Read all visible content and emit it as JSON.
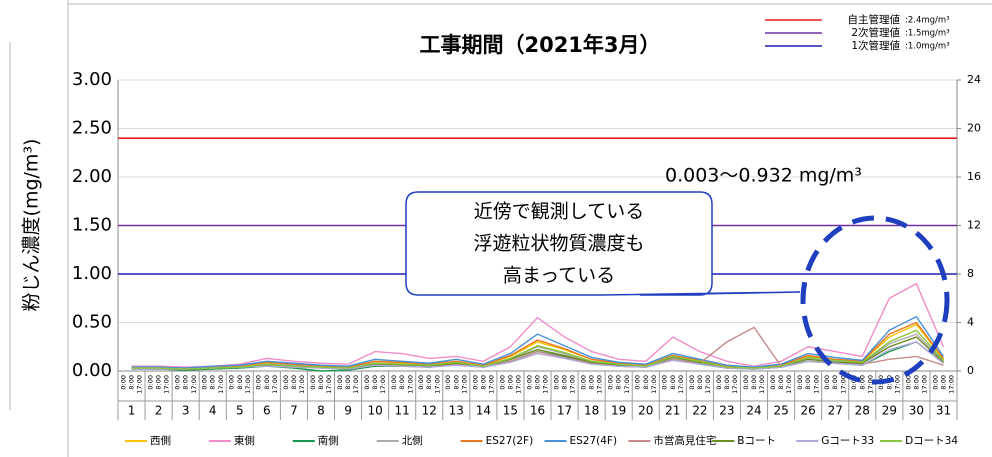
{
  "chart_data": {
    "type": "line",
    "title": "工事期間（2021年3月）",
    "y_label": "粉じん濃度(mg/m³)",
    "annotation": {
      "range_text": "0.003～0.932 mg/m³",
      "lines": [
        "近傍で観測している",
        "浮遊粒状物質濃度も",
        "高まっている"
      ]
    },
    "threshold_lines": [
      {
        "name": "自主管理値",
        "label": ":2.4mg/m³",
        "value": 2.4,
        "color": "#e8211d"
      },
      {
        "name": "2次管理値",
        "label": ":1.5mg/m³",
        "value": 1.5,
        "color": "#7030a0"
      },
      {
        "name": "1次管理値",
        "label": ":1.0mg/m³",
        "value": 1.0,
        "color": "#1f1fb4"
      }
    ],
    "categories": [
      "1",
      "2",
      "3",
      "4",
      "5",
      "6",
      "7",
      "8",
      "9",
      "10",
      "11",
      "12",
      "13",
      "14",
      "15",
      "16",
      "17",
      "18",
      "19",
      "20",
      "21",
      "22",
      "23",
      "24",
      "25",
      "26",
      "27",
      "28",
      "29",
      "30",
      "31"
    ],
    "time_ticks": [
      "0:00",
      "8:00",
      "17:00"
    ],
    "ylim": [
      0,
      3
    ],
    "yticks": [
      {
        "value": 0,
        "label": "0.00"
      },
      {
        "value": 0.5,
        "label": "0.50"
      },
      {
        "value": 1,
        "label": "1.00"
      },
      {
        "value": 1.5,
        "label": "1.50"
      },
      {
        "value": 2,
        "label": "2.00"
      },
      {
        "value": 2.5,
        "label": "2.50"
      },
      {
        "value": 3,
        "label": "3.00"
      }
    ],
    "y2lim": [
      0,
      24
    ],
    "y2ticks": [
      0,
      4,
      8,
      12,
      16,
      20,
      24
    ],
    "grid": true,
    "series": [
      {
        "name": "西側",
        "color": "#f5c400",
        "values": [
          0.03,
          0.03,
          0.03,
          0.04,
          0.05,
          0.08,
          0.07,
          0.05,
          0.04,
          0.1,
          0.08,
          0.07,
          0.1,
          0.06,
          0.15,
          0.3,
          0.22,
          0.12,
          0.08,
          0.06,
          0.15,
          0.1,
          0.05,
          0.03,
          0.06,
          0.15,
          0.12,
          0.1,
          0.35,
          0.48,
          0.12
        ]
      },
      {
        "name": "東側",
        "color": "#f08cc8",
        "values": [
          0.05,
          0.05,
          0.04,
          0.05,
          0.07,
          0.13,
          0.1,
          0.08,
          0.07,
          0.2,
          0.18,
          0.13,
          0.15,
          0.1,
          0.25,
          0.55,
          0.35,
          0.2,
          0.12,
          0.1,
          0.35,
          0.2,
          0.1,
          0.05,
          0.1,
          0.25,
          0.2,
          0.15,
          0.75,
          0.9,
          0.25
        ]
      },
      {
        "name": "南側",
        "color": "#1a9850",
        "values": [
          0.02,
          0.02,
          0.01,
          0.02,
          0.03,
          0.05,
          0.03,
          0.0,
          0.01,
          0.05,
          0.05,
          0.04,
          0.07,
          0.04,
          0.1,
          0.2,
          0.15,
          0.08,
          0.05,
          0.04,
          0.12,
          0.07,
          0.03,
          0.02,
          0.04,
          0.1,
          0.08,
          0.06,
          0.2,
          0.3,
          0.08
        ]
      },
      {
        "name": "北側",
        "color": "#aaaaaa",
        "values": [
          0.03,
          0.03,
          0.02,
          0.03,
          0.04,
          0.07,
          0.06,
          0.04,
          0.03,
          0.08,
          0.07,
          0.06,
          0.08,
          0.05,
          0.12,
          0.25,
          0.18,
          0.1,
          0.07,
          0.05,
          0.14,
          0.09,
          0.04,
          0.03,
          0.05,
          0.13,
          0.1,
          0.08,
          0.28,
          0.38,
          0.1
        ]
      },
      {
        "name": "ES27(2F)",
        "color": "#e87722",
        "values": [
          0.03,
          0.03,
          0.03,
          0.04,
          0.05,
          0.09,
          0.07,
          0.05,
          0.04,
          0.1,
          0.09,
          0.07,
          0.1,
          0.06,
          0.16,
          0.32,
          0.23,
          0.12,
          0.08,
          0.06,
          0.16,
          0.11,
          0.05,
          0.03,
          0.06,
          0.16,
          0.12,
          0.1,
          0.38,
          0.5,
          0.13
        ]
      },
      {
        "name": "ES27(4F)",
        "color": "#4a90d9",
        "values": [
          0.04,
          0.04,
          0.03,
          0.05,
          0.06,
          0.1,
          0.08,
          0.06,
          0.05,
          0.12,
          0.1,
          0.08,
          0.12,
          0.07,
          0.18,
          0.38,
          0.26,
          0.14,
          0.09,
          0.07,
          0.18,
          0.12,
          0.06,
          0.04,
          0.07,
          0.18,
          0.14,
          0.11,
          0.42,
          0.56,
          0.15
        ]
      },
      {
        "name": "市営高見住宅",
        "color": "#c48a8a",
        "values": [
          0.03,
          0.03,
          0.02,
          0.03,
          0.04,
          0.06,
          0.05,
          0.04,
          0.03,
          0.06,
          0.05,
          0.05,
          0.07,
          0.04,
          0.1,
          0.2,
          0.14,
          0.08,
          0.05,
          0.04,
          0.12,
          0.08,
          0.3,
          0.45,
          0.05,
          0.1,
          0.08,
          0.07,
          0.12,
          0.15,
          0.06
        ]
      },
      {
        "name": "Bコート",
        "color": "#6b8e23",
        "values": [
          0.03,
          0.02,
          0.02,
          0.03,
          0.04,
          0.06,
          0.05,
          0.03,
          0.03,
          0.07,
          0.06,
          0.05,
          0.08,
          0.05,
          0.12,
          0.22,
          0.16,
          0.09,
          0.06,
          0.05,
          0.14,
          0.09,
          0.04,
          0.03,
          0.05,
          0.12,
          0.09,
          0.08,
          0.25,
          0.35,
          0.09
        ]
      },
      {
        "name": "Gコート33",
        "color": "#b0a8d8",
        "values": [
          0.02,
          0.02,
          0.02,
          0.03,
          0.04,
          0.05,
          0.04,
          0.03,
          0.02,
          0.06,
          0.05,
          0.04,
          0.06,
          0.04,
          0.09,
          0.18,
          0.13,
          0.07,
          0.05,
          0.04,
          0.11,
          0.07,
          0.03,
          0.02,
          0.04,
          0.1,
          0.08,
          0.06,
          0.22,
          0.3,
          0.08
        ]
      },
      {
        "name": "Dコート34",
        "color": "#8cc63f",
        "values": [
          0.03,
          0.03,
          0.02,
          0.03,
          0.04,
          0.07,
          0.05,
          0.04,
          0.03,
          0.08,
          0.07,
          0.06,
          0.09,
          0.05,
          0.13,
          0.26,
          0.19,
          0.1,
          0.07,
          0.05,
          0.15,
          0.1,
          0.04,
          0.03,
          0.05,
          0.14,
          0.11,
          0.09,
          0.3,
          0.42,
          0.11
        ]
      }
    ]
  }
}
